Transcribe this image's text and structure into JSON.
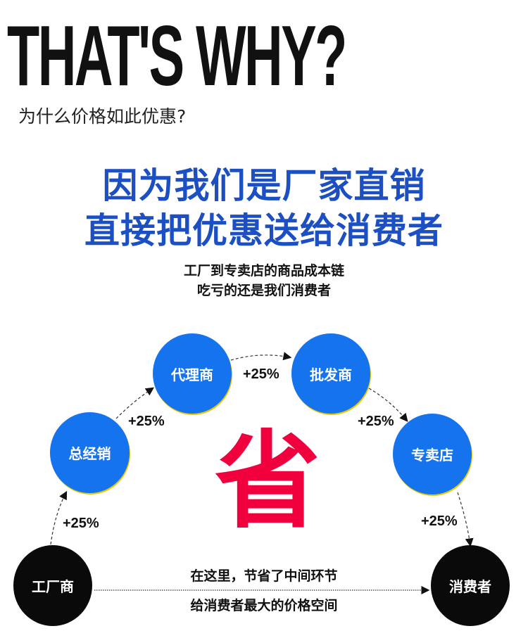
{
  "header": {
    "title": "THAT'S WHY?",
    "subtitle": "为什么价格如此优惠?"
  },
  "headline": {
    "line1": "因为我们是厂家直销",
    "line2": "直接把优惠送给消费者"
  },
  "intro": {
    "line1": "工厂到专卖店的商品成本链",
    "line2": "吃亏的还是我们消费者"
  },
  "flow": {
    "nodes": [
      "工厂商",
      "总经销",
      "代理商",
      "批发商",
      "专卖店",
      "消费者"
    ],
    "markups": [
      "+25%",
      "+25%",
      "+25%",
      "+25%",
      "+25%"
    ],
    "center_char": "省",
    "direct_line1": "在这里，节省了中间环节",
    "direct_line2": "给消费者最大的价格空间"
  },
  "colors": {
    "headline": "#1b4fc2",
    "node_blue": "#1673ee",
    "node_black": "#0a0a0a",
    "save": "#f0003c"
  }
}
